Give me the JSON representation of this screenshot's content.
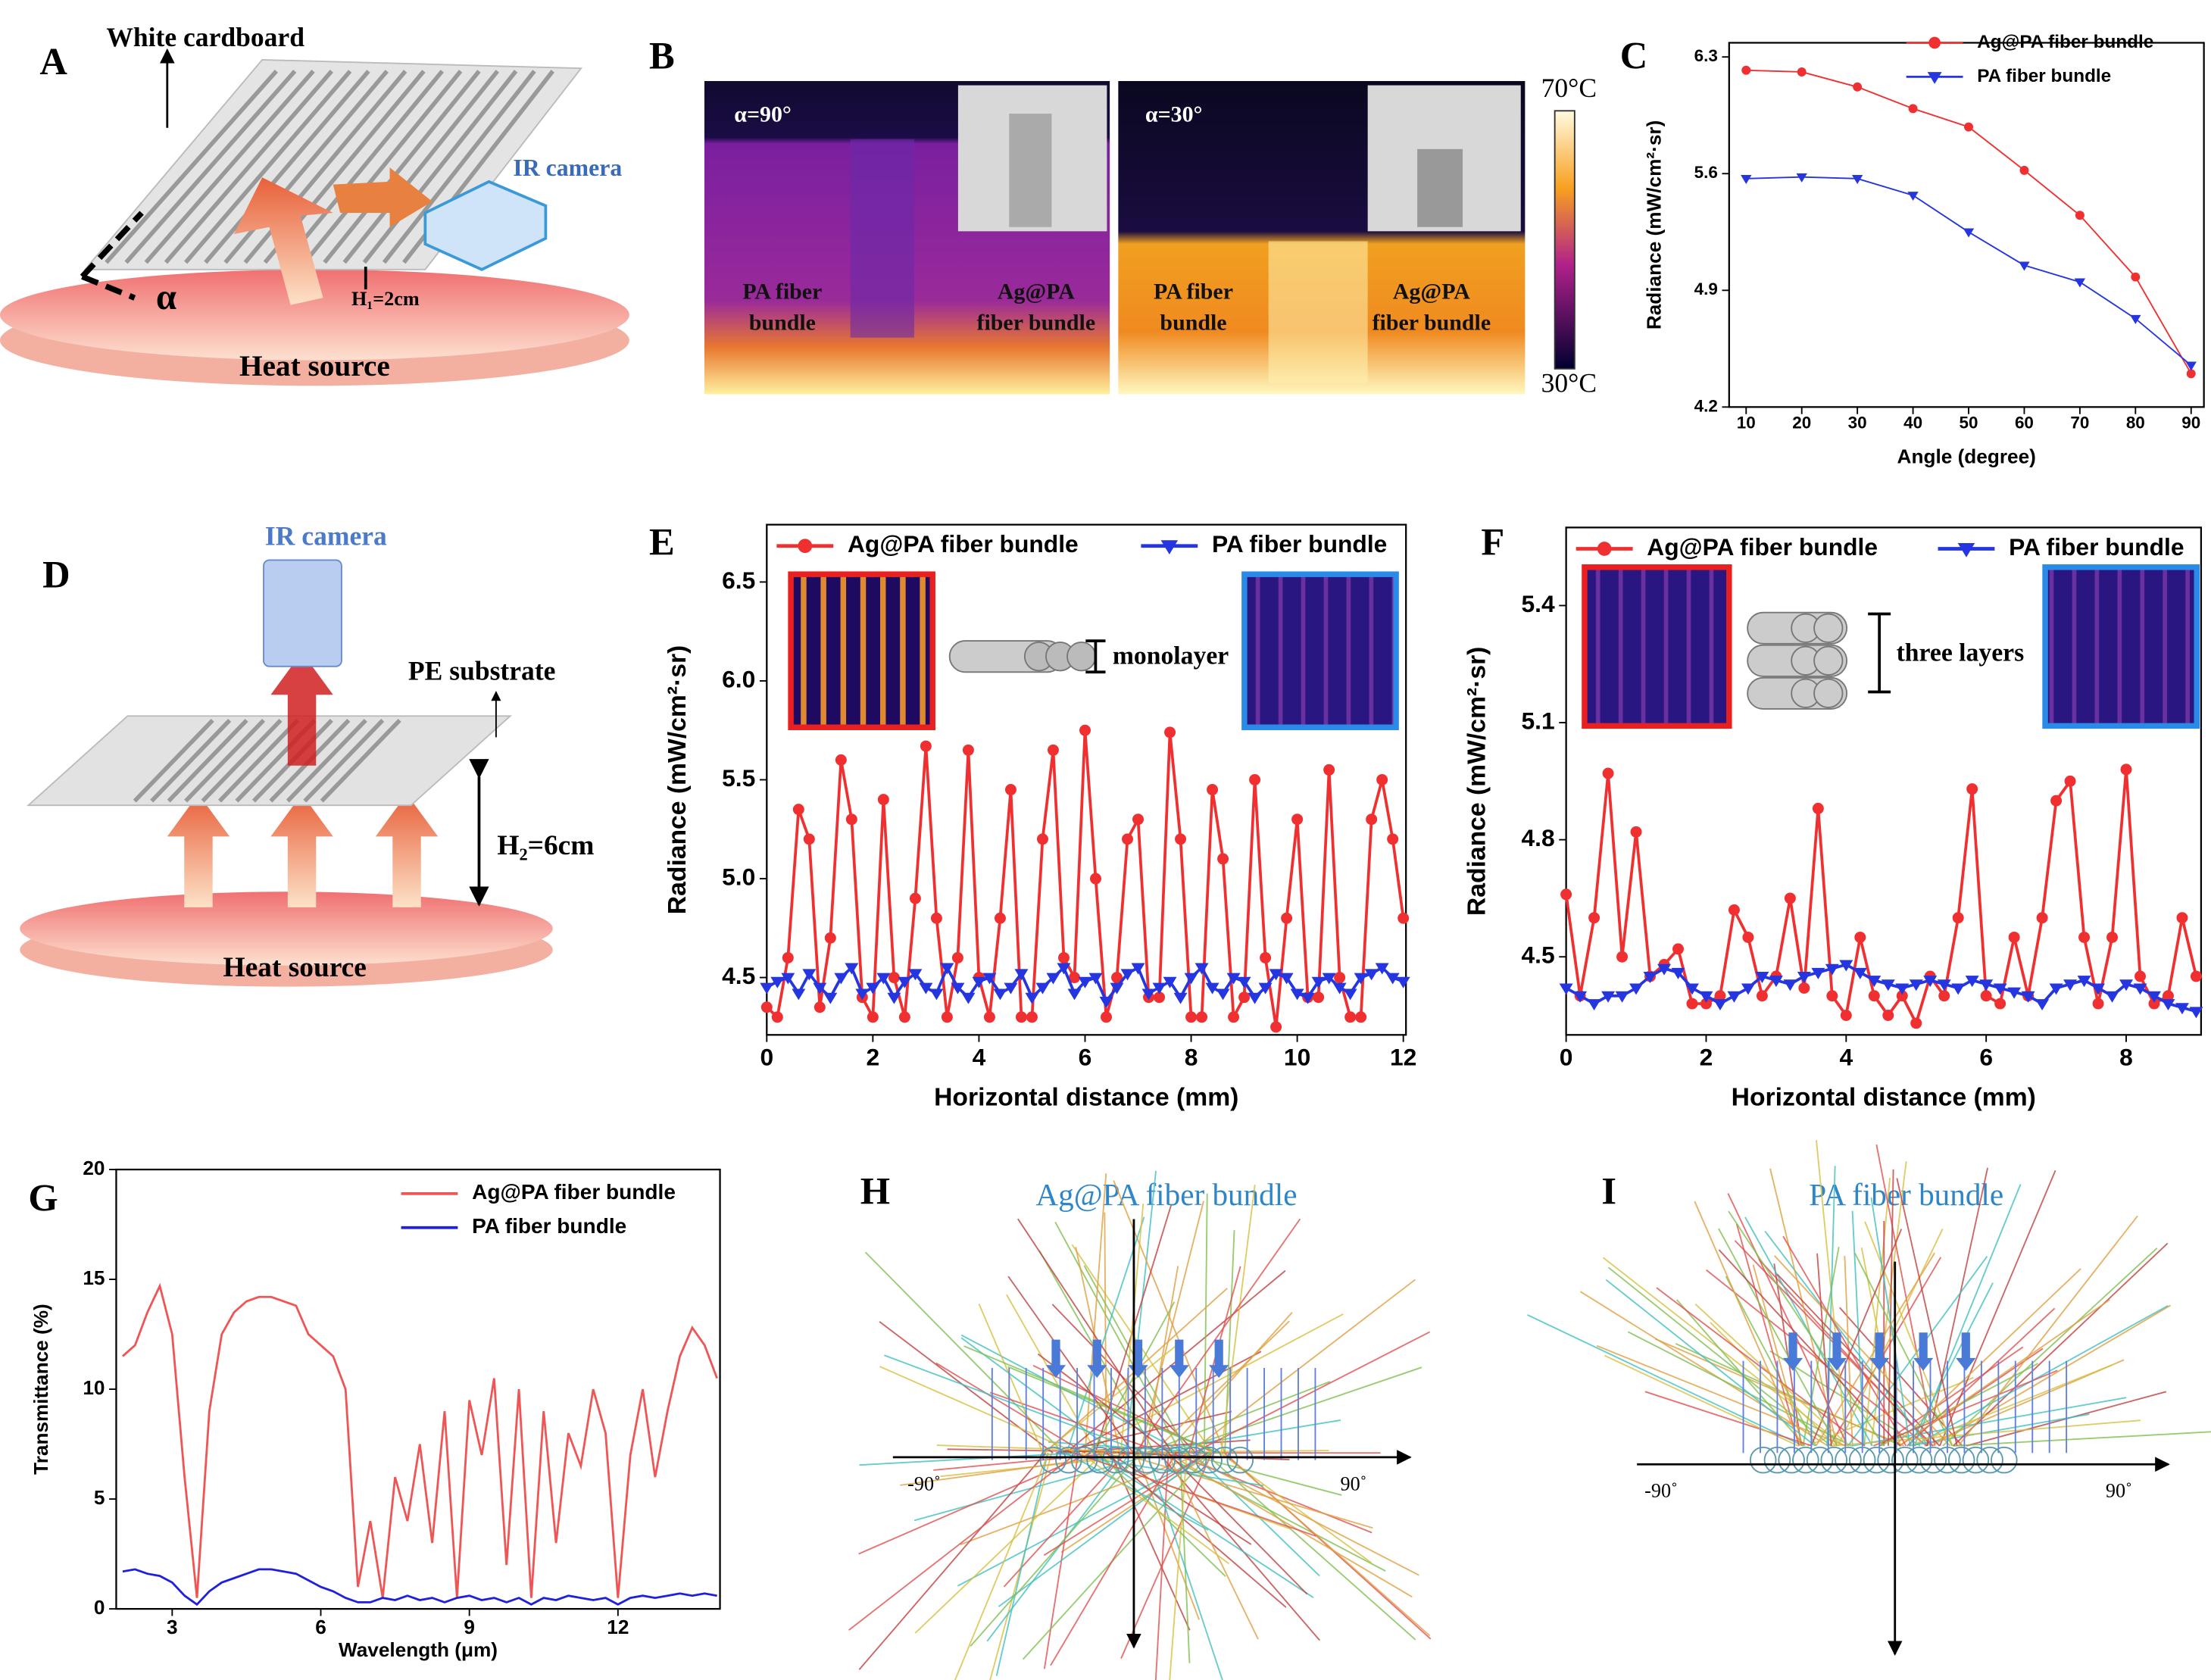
{
  "chart_data": [
    {
      "type": "line",
      "label": "C",
      "ylabel": "Radiance (mW/cm²·sr)",
      "xlabel": "Angle (degree)",
      "x": [
        10,
        20,
        30,
        40,
        50,
        60,
        70,
        80,
        90
      ],
      "series": [
        {
          "name": "Ag@PA fiber bundle",
          "color": "#f03030",
          "marker": "circle",
          "values": [
            6.22,
            6.21,
            6.12,
            5.99,
            5.88,
            5.62,
            5.35,
            4.98,
            4.4
          ]
        },
        {
          "name": "PA fiber bundle",
          "color": "#2535e0",
          "marker": "triangle",
          "values": [
            5.57,
            5.58,
            5.57,
            5.47,
            5.25,
            5.05,
            4.95,
            4.73,
            4.45
          ]
        }
      ],
      "xlim": [
        6.94,
        92.3
      ],
      "xticks": [
        10,
        20,
        30,
        40,
        50,
        60,
        70,
        80,
        90
      ],
      "ylim": [
        4.2,
        6.385
      ],
      "yticks": [
        4.2,
        4.9,
        5.6,
        6.3
      ],
      "grid": false,
      "legend": "upper right"
    },
    {
      "type": "line",
      "label": "E",
      "ylabel": "Radiance (mW/cm²·sr)",
      "xlabel": "Horizontal distance (mm)",
      "annotation": "monolayer",
      "x": [
        0,
        0.2,
        0.4,
        0.6,
        0.8,
        1,
        1.2,
        1.4,
        1.6,
        1.8,
        2,
        2.2,
        2.4,
        2.6,
        2.8,
        3,
        3.2,
        3.4,
        3.6,
        3.8,
        4,
        4.2,
        4.4,
        4.6,
        4.8,
        5,
        5.2,
        5.4,
        5.6,
        5.8,
        6,
        6.2,
        6.4,
        6.6,
        6.8,
        7,
        7.2,
        7.4,
        7.6,
        7.8,
        8,
        8.2,
        8.4,
        8.6,
        8.8,
        9,
        9.2,
        9.4,
        9.6,
        9.8,
        10,
        10.2,
        10.4,
        10.6,
        10.8,
        11,
        11.2,
        11.4,
        11.6,
        11.8,
        12
      ],
      "series": [
        {
          "name": "Ag@PA fiber bundle",
          "color": "#f03030",
          "marker": "circle",
          "values": [
            4.35,
            4.3,
            4.6,
            5.35,
            5.2,
            4.35,
            4.7,
            5.6,
            5.3,
            4.4,
            4.3,
            5.4,
            4.5,
            4.3,
            4.9,
            5.67,
            4.8,
            4.3,
            4.6,
            5.65,
            4.5,
            4.3,
            4.8,
            5.45,
            4.3,
            4.3,
            5.2,
            5.65,
            4.6,
            4.5,
            5.75,
            5.0,
            4.3,
            4.5,
            5.2,
            5.3,
            4.4,
            4.4,
            5.74,
            5.2,
            4.3,
            4.3,
            5.45,
            5.1,
            4.3,
            4.4,
            5.5,
            4.6,
            4.25,
            4.8,
            5.3,
            4.4,
            4.4,
            5.55,
            4.5,
            4.3,
            4.3,
            5.3,
            5.5,
            5.2,
            4.8
          ]
        },
        {
          "name": "PA fiber bundle",
          "color": "#2535e0",
          "marker": "triangle",
          "values": [
            4.45,
            4.48,
            4.5,
            4.42,
            4.52,
            4.45,
            4.4,
            4.5,
            4.55,
            4.42,
            4.45,
            4.5,
            4.4,
            4.48,
            4.52,
            4.45,
            4.42,
            4.55,
            4.45,
            4.4,
            4.48,
            4.5,
            4.42,
            4.45,
            4.52,
            4.4,
            4.45,
            4.5,
            4.55,
            4.42,
            4.48,
            4.5,
            4.38,
            4.45,
            4.52,
            4.55,
            4.42,
            4.45,
            4.48,
            4.4,
            4.5,
            4.55,
            4.45,
            4.42,
            4.5,
            4.48,
            4.4,
            4.45,
            4.52,
            4.5,
            4.42,
            4.4,
            4.48,
            4.5,
            4.45,
            4.42,
            4.5,
            4.52,
            4.55,
            4.5,
            4.48
          ]
        }
      ],
      "xlim": [
        0,
        12.05
      ],
      "xticks": [
        0,
        2,
        4,
        6,
        8,
        10,
        12
      ],
      "ylim": [
        4.21,
        6.79
      ],
      "yticks": [
        4.5,
        {
          "value": 5,
          "label": "5.0"
        },
        5.5,
        {
          "value": 6,
          "label": "6.0"
        },
        6.5
      ],
      "grid": false,
      "legend": "upper center"
    },
    {
      "type": "line",
      "label": "F",
      "ylabel": "Radiance (mW/cm²·sr)",
      "xlabel": "Horizontal distance (mm)",
      "annotation": "three layers",
      "x": [
        0,
        0.2,
        0.4,
        0.6,
        0.8,
        1,
        1.2,
        1.4,
        1.6,
        1.8,
        2,
        2.2,
        2.4,
        2.6,
        2.8,
        3,
        3.2,
        3.4,
        3.6,
        3.8,
        4,
        4.2,
        4.4,
        4.6,
        4.8,
        5,
        5.2,
        5.4,
        5.6,
        5.8,
        6,
        6.2,
        6.4,
        6.6,
        6.8,
        7,
        7.2,
        7.4,
        7.6,
        7.8,
        8,
        8.2,
        8.4,
        8.6,
        8.8,
        9
      ],
      "series": [
        {
          "name": "Ag@PA fiber bundle",
          "color": "#f03030",
          "marker": "circle",
          "values": [
            4.66,
            4.4,
            4.6,
            4.97,
            4.5,
            4.82,
            4.45,
            4.48,
            4.52,
            4.38,
            4.38,
            4.4,
            4.62,
            4.55,
            4.4,
            4.45,
            4.65,
            4.42,
            4.88,
            4.4,
            4.35,
            4.55,
            4.4,
            4.35,
            4.4,
            4.33,
            4.45,
            4.4,
            4.6,
            4.93,
            4.4,
            4.38,
            4.55,
            4.4,
            4.6,
            4.9,
            4.95,
            4.55,
            4.38,
            4.55,
            4.98,
            4.45,
            4.38,
            4.4,
            4.6,
            4.45
          ]
        },
        {
          "name": "PA fiber bundle",
          "color": "#2535e0",
          "marker": "triangle",
          "values": [
            4.42,
            4.4,
            4.38,
            4.4,
            4.4,
            4.42,
            4.45,
            4.47,
            4.46,
            4.42,
            4.4,
            4.38,
            4.4,
            4.42,
            4.45,
            4.44,
            4.43,
            4.45,
            4.46,
            4.47,
            4.48,
            4.46,
            4.44,
            4.43,
            4.42,
            4.43,
            4.44,
            4.43,
            4.42,
            4.44,
            4.43,
            4.42,
            4.41,
            4.4,
            4.38,
            4.42,
            4.43,
            4.44,
            4.42,
            4.4,
            4.43,
            4.42,
            4.4,
            4.38,
            4.37,
            4.36
          ]
        }
      ],
      "xlim": [
        0,
        9.07
      ],
      "xticks": [
        0,
        2,
        4,
        6,
        8
      ],
      "ylim": [
        4.3,
        5.6
      ],
      "yticks": [
        4.5,
        4.8,
        5.1,
        5.4
      ],
      "grid": false,
      "legend": "upper center"
    },
    {
      "type": "line",
      "label": "G",
      "ylabel": "Transmittance (%)",
      "xlabel": "Wavelength (μm)",
      "x": [
        2,
        2.25,
        2.5,
        2.75,
        3,
        3.25,
        3.5,
        3.75,
        4,
        4.25,
        4.5,
        4.75,
        5,
        5.25,
        5.5,
        5.75,
        6,
        6.25,
        6.5,
        6.75,
        7,
        7.25,
        7.5,
        7.75,
        8,
        8.25,
        8.5,
        8.75,
        9,
        9.25,
        9.5,
        9.75,
        10,
        10.25,
        10.5,
        10.75,
        11,
        11.25,
        11.5,
        11.75,
        12,
        12.25,
        12.5,
        12.75,
        13,
        13.25,
        13.5,
        13.75,
        14
      ],
      "series": [
        {
          "name": "Ag@PA fiber bundle",
          "color": "#f05555",
          "values": [
            11.5,
            12,
            13.5,
            14.7,
            12.5,
            6,
            0.5,
            9,
            12.5,
            13.5,
            14,
            14.2,
            14.2,
            14,
            13.8,
            12.5,
            12,
            11.5,
            10,
            1,
            4,
            0.5,
            6,
            4,
            7.5,
            3,
            9,
            0.5,
            9.5,
            7,
            10.5,
            2,
            10,
            0.5,
            9,
            3,
            8,
            6.5,
            10,
            8,
            0.5,
            7,
            10,
            6,
            9,
            11.5,
            12.8,
            12,
            10.5
          ]
        },
        {
          "name": "PA fiber bundle",
          "color": "#1f1fe0",
          "values": [
            1.7,
            1.8,
            1.6,
            1.5,
            1.2,
            0.6,
            0.2,
            0.8,
            1.2,
            1.4,
            1.6,
            1.8,
            1.8,
            1.7,
            1.6,
            1.3,
            1.0,
            0.8,
            0.5,
            0.3,
            0.3,
            0.5,
            0.4,
            0.6,
            0.4,
            0.5,
            0.3,
            0.5,
            0.6,
            0.4,
            0.5,
            0.3,
            0.5,
            0.2,
            0.5,
            0.4,
            0.6,
            0.5,
            0.4,
            0.5,
            0.2,
            0.5,
            0.6,
            0.5,
            0.6,
            0.7,
            0.6,
            0.7,
            0.6
          ]
        }
      ],
      "xlim": [
        1.87,
        14.06
      ],
      "xticks": [
        3,
        6,
        9,
        12
      ],
      "ylim": [
        0,
        20
      ],
      "yticks": [
        0,
        5,
        10,
        15,
        20
      ],
      "grid": false,
      "legend": "upper right"
    }
  ],
  "diagrams": {
    "A": {
      "label": "A",
      "board": "White cardboard",
      "camera": "IR camera",
      "height": "H₁=2cm",
      "angle": "α",
      "source": "Heat source"
    },
    "B": {
      "label": "B",
      "left_angle": "α=90°",
      "right_angle": "α=30°",
      "pa_line1": "PA fiber",
      "pa_line2": "bundle",
      "ag_line1": "Ag@PA",
      "ag_line2": "fiber bundle",
      "scale_max": "70°C",
      "scale_min": "30°C"
    },
    "D": {
      "label": "D",
      "camera": "IR camera",
      "substrate": "PE substrate",
      "height": "H₂=6cm",
      "source": "Heat source"
    },
    "H": {
      "label": "H",
      "title": "Ag@PA fiber bundle",
      "left": "-90˚",
      "right": "90˚"
    },
    "I": {
      "label": "I",
      "title": "PA fiber bundle",
      "left": "-90˚",
      "right": "90˚"
    }
  }
}
